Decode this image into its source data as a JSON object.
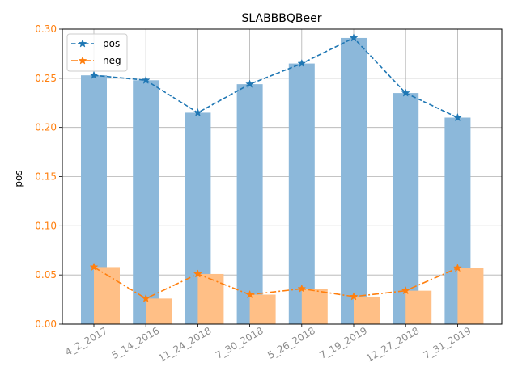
{
  "chart_data": {
    "type": "bar",
    "title": "SLABBBQBeer",
    "xlabel": "",
    "ylabel": "pos",
    "ylim": [
      0,
      0.3
    ],
    "yticks": [
      "0.00",
      "0.05",
      "0.10",
      "0.15",
      "0.20",
      "0.25",
      "0.30"
    ],
    "grid": true,
    "legend_placement": "top-left",
    "categories": [
      "4_2_2017",
      "5_14_2016",
      "11_24_2018",
      "7_30_2018",
      "5_26_2018",
      "7_19_2019",
      "12_27_2018",
      "7_31_2019"
    ],
    "series": [
      {
        "name": "pos",
        "values": [
          0.253,
          0.248,
          0.215,
          0.244,
          0.265,
          0.291,
          0.235,
          0.21
        ],
        "color": "#1f77b4",
        "bar_color": "#8cb8da",
        "line_style": "dashed"
      },
      {
        "name": "neg",
        "values": [
          0.058,
          0.026,
          0.051,
          0.03,
          0.036,
          0.028,
          0.034,
          0.057
        ],
        "color": "#ff7f0e",
        "bar_color": "#ffbf86",
        "line_style": "dashdot"
      }
    ]
  }
}
